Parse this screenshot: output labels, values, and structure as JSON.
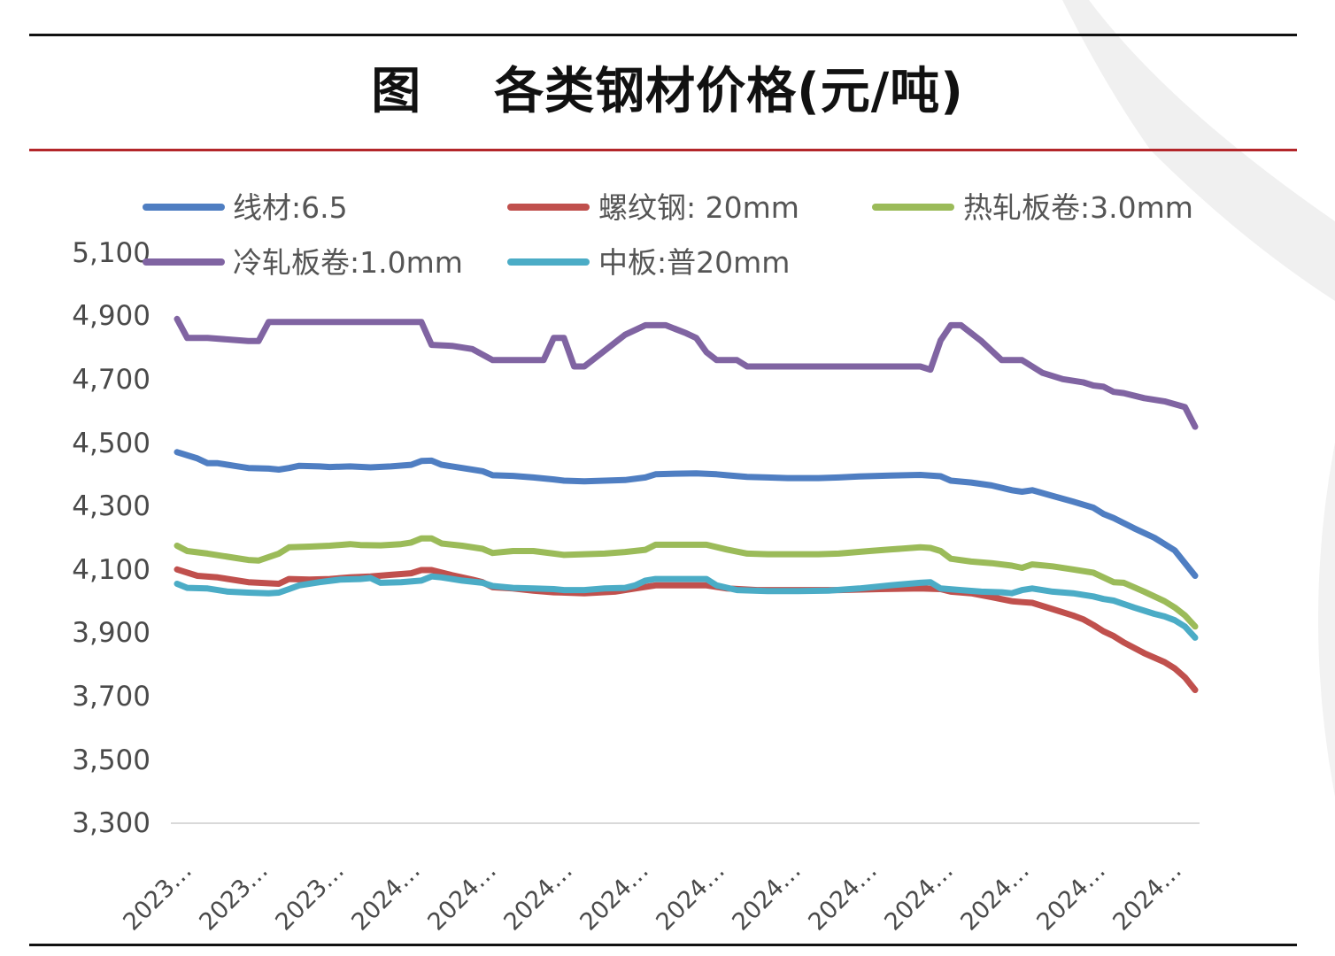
{
  "title": "图    各类钢材价格(元/吨)",
  "chart_data": {
    "type": "line",
    "title": "图 各类钢材价格(元/吨)",
    "xlabel": "",
    "ylabel": "",
    "ylim": [
      3300,
      5100
    ],
    "yticks": [
      "5,100",
      "4,900",
      "4,700",
      "4,500",
      "4,300",
      "4,100",
      "3,900",
      "3,700",
      "3,500",
      "3,300"
    ],
    "ytick_values": [
      5100,
      4900,
      4700,
      4500,
      4300,
      4100,
      3900,
      3700,
      3500,
      3300
    ],
    "x_tick_labels": [
      "2023…",
      "2023…",
      "2023…",
      "2024…",
      "2024…",
      "2024…",
      "2024…",
      "2024…",
      "2024…",
      "2024…",
      "2024…",
      "2024…",
      "2024…",
      "2024…"
    ],
    "x_range": [
      0,
      100
    ],
    "grid": false,
    "legend_position": "top",
    "series": [
      {
        "name": "线材:6.5",
        "color": "#4f7ec2",
        "points": [
          [
            0,
            4470
          ],
          [
            2,
            4450
          ],
          [
            3,
            4435
          ],
          [
            4,
            4435
          ],
          [
            6,
            4425
          ],
          [
            7,
            4420
          ],
          [
            9,
            4418
          ],
          [
            10,
            4415
          ],
          [
            11,
            4420
          ],
          [
            12,
            4427
          ],
          [
            14,
            4425
          ],
          [
            15,
            4423
          ],
          [
            17,
            4425
          ],
          [
            19,
            4422
          ],
          [
            21,
            4425
          ],
          [
            23,
            4430
          ],
          [
            24,
            4442
          ],
          [
            25,
            4443
          ],
          [
            26,
            4430
          ],
          [
            28,
            4420
          ],
          [
            30,
            4410
          ],
          [
            31,
            4397
          ],
          [
            33,
            4395
          ],
          [
            35,
            4390
          ],
          [
            37,
            4384
          ],
          [
            38,
            4380
          ],
          [
            40,
            4378
          ],
          [
            42,
            4380
          ],
          [
            44,
            4382
          ],
          [
            46,
            4390
          ],
          [
            47,
            4400
          ],
          [
            49,
            4402
          ],
          [
            51,
            4403
          ],
          [
            53,
            4400
          ],
          [
            54,
            4397
          ],
          [
            56,
            4392
          ],
          [
            58,
            4390
          ],
          [
            60,
            4388
          ],
          [
            63,
            4388
          ],
          [
            65,
            4390
          ],
          [
            67,
            4393
          ],
          [
            70,
            4396
          ],
          [
            73,
            4398
          ],
          [
            75,
            4394
          ],
          [
            76,
            4380
          ],
          [
            78,
            4374
          ],
          [
            80,
            4365
          ],
          [
            82,
            4350
          ],
          [
            83,
            4345
          ],
          [
            84,
            4350
          ],
          [
            86,
            4332
          ],
          [
            88,
            4314
          ],
          [
            90,
            4295
          ],
          [
            91,
            4275
          ],
          [
            92,
            4262
          ],
          [
            93,
            4246
          ],
          [
            94,
            4230
          ],
          [
            96,
            4200
          ],
          [
            98,
            4160
          ],
          [
            99,
            4120
          ],
          [
            100,
            4080
          ]
        ]
      },
      {
        "name": "螺纹钢: 20mm",
        "color": "#c0504d",
        "points": [
          [
            0,
            4100
          ],
          [
            2,
            4080
          ],
          [
            4,
            4075
          ],
          [
            7,
            4060
          ],
          [
            10,
            4055
          ],
          [
            11,
            4070
          ],
          [
            13,
            4068
          ],
          [
            15,
            4070
          ],
          [
            17,
            4075
          ],
          [
            19,
            4078
          ],
          [
            21,
            4083
          ],
          [
            23,
            4088
          ],
          [
            24,
            4098
          ],
          [
            25,
            4098
          ],
          [
            27,
            4082
          ],
          [
            29,
            4068
          ],
          [
            30,
            4060
          ],
          [
            31,
            4044
          ],
          [
            33,
            4040
          ],
          [
            35,
            4033
          ],
          [
            37,
            4028
          ],
          [
            40,
            4025
          ],
          [
            43,
            4030
          ],
          [
            45,
            4040
          ],
          [
            47,
            4050
          ],
          [
            49,
            4050
          ],
          [
            52,
            4050
          ],
          [
            54,
            4040
          ],
          [
            57,
            4035
          ],
          [
            61,
            4035
          ],
          [
            65,
            4035
          ],
          [
            69,
            4038
          ],
          [
            73,
            4040
          ],
          [
            75,
            4038
          ],
          [
            76,
            4030
          ],
          [
            78,
            4025
          ],
          [
            80,
            4013
          ],
          [
            82,
            4000
          ],
          [
            83,
            3997
          ],
          [
            84,
            3995
          ],
          [
            86,
            3975
          ],
          [
            88,
            3955
          ],
          [
            89,
            3943
          ],
          [
            90,
            3925
          ],
          [
            91,
            3905
          ],
          [
            92,
            3890
          ],
          [
            93,
            3870
          ],
          [
            95,
            3836
          ],
          [
            97,
            3808
          ],
          [
            98,
            3788
          ],
          [
            99,
            3760
          ],
          [
            100,
            3720
          ]
        ]
      },
      {
        "name": "热轧板卷:3.0mm",
        "color": "#9bbb59",
        "points": [
          [
            0,
            4175
          ],
          [
            1,
            4158
          ],
          [
            3,
            4150
          ],
          [
            5,
            4140
          ],
          [
            7,
            4130
          ],
          [
            8,
            4128
          ],
          [
            10,
            4150
          ],
          [
            11,
            4170
          ],
          [
            13,
            4172
          ],
          [
            15,
            4175
          ],
          [
            17,
            4180
          ],
          [
            18,
            4177
          ],
          [
            20,
            4176
          ],
          [
            22,
            4180
          ],
          [
            23,
            4185
          ],
          [
            24,
            4198
          ],
          [
            25,
            4198
          ],
          [
            26,
            4182
          ],
          [
            28,
            4175
          ],
          [
            30,
            4165
          ],
          [
            31,
            4152
          ],
          [
            33,
            4158
          ],
          [
            35,
            4158
          ],
          [
            37,
            4150
          ],
          [
            38,
            4146
          ],
          [
            40,
            4148
          ],
          [
            42,
            4150
          ],
          [
            44,
            4155
          ],
          [
            46,
            4162
          ],
          [
            47,
            4178
          ],
          [
            49,
            4178
          ],
          [
            51,
            4178
          ],
          [
            52,
            4178
          ],
          [
            54,
            4163
          ],
          [
            56,
            4150
          ],
          [
            58,
            4148
          ],
          [
            60,
            4148
          ],
          [
            63,
            4148
          ],
          [
            65,
            4150
          ],
          [
            68,
            4158
          ],
          [
            70,
            4163
          ],
          [
            73,
            4170
          ],
          [
            74,
            4168
          ],
          [
            75,
            4158
          ],
          [
            76,
            4134
          ],
          [
            78,
            4125
          ],
          [
            80,
            4120
          ],
          [
            82,
            4112
          ],
          [
            83,
            4105
          ],
          [
            84,
            4116
          ],
          [
            86,
            4110
          ],
          [
            88,
            4100
          ],
          [
            90,
            4090
          ],
          [
            91,
            4075
          ],
          [
            92,
            4060
          ],
          [
            93,
            4058
          ],
          [
            95,
            4030
          ],
          [
            97,
            4000
          ],
          [
            98,
            3980
          ],
          [
            99,
            3955
          ],
          [
            100,
            3920
          ]
        ]
      },
      {
        "name": "冷轧板卷:1.0mm",
        "color": "#8064a2",
        "points": [
          [
            0,
            4890
          ],
          [
            1,
            4830
          ],
          [
            3,
            4830
          ],
          [
            5,
            4825
          ],
          [
            7,
            4820
          ],
          [
            8,
            4820
          ],
          [
            9,
            4880
          ],
          [
            10,
            4880
          ],
          [
            12,
            4880
          ],
          [
            15,
            4880
          ],
          [
            18,
            4880
          ],
          [
            21,
            4880
          ],
          [
            23,
            4880
          ],
          [
            24,
            4880
          ],
          [
            25,
            4808
          ],
          [
            27,
            4805
          ],
          [
            29,
            4795
          ],
          [
            31,
            4760
          ],
          [
            33,
            4760
          ],
          [
            35,
            4760
          ],
          [
            36,
            4760
          ],
          [
            37,
            4830
          ],
          [
            38,
            4830
          ],
          [
            39,
            4740
          ],
          [
            40,
            4740
          ],
          [
            42,
            4790
          ],
          [
            44,
            4840
          ],
          [
            46,
            4870
          ],
          [
            48,
            4870
          ],
          [
            50,
            4845
          ],
          [
            51,
            4830
          ],
          [
            52,
            4785
          ],
          [
            53,
            4760
          ],
          [
            55,
            4760
          ],
          [
            56,
            4740
          ],
          [
            58,
            4740
          ],
          [
            61,
            4740
          ],
          [
            65,
            4740
          ],
          [
            69,
            4740
          ],
          [
            73,
            4740
          ],
          [
            74,
            4730
          ],
          [
            75,
            4822
          ],
          [
            76,
            4870
          ],
          [
            77,
            4870
          ],
          [
            79,
            4820
          ],
          [
            81,
            4760
          ],
          [
            82,
            4760
          ],
          [
            83,
            4760
          ],
          [
            85,
            4720
          ],
          [
            87,
            4700
          ],
          [
            89,
            4690
          ],
          [
            90,
            4680
          ],
          [
            91,
            4676
          ],
          [
            92,
            4660
          ],
          [
            93,
            4656
          ],
          [
            95,
            4640
          ],
          [
            97,
            4630
          ],
          [
            99,
            4612
          ],
          [
            100,
            4550
          ]
        ]
      },
      {
        "name": "中板:普20mm",
        "color": "#4bacc6",
        "points": [
          [
            0,
            4055
          ],
          [
            1,
            4042
          ],
          [
            3,
            4040
          ],
          [
            5,
            4030
          ],
          [
            7,
            4027
          ],
          [
            9,
            4025
          ],
          [
            10,
            4027
          ],
          [
            11,
            4038
          ],
          [
            12,
            4050
          ],
          [
            14,
            4060
          ],
          [
            16,
            4068
          ],
          [
            18,
            4070
          ],
          [
            19,
            4073
          ],
          [
            20,
            4058
          ],
          [
            22,
            4060
          ],
          [
            24,
            4065
          ],
          [
            25,
            4078
          ],
          [
            26,
            4075
          ],
          [
            28,
            4065
          ],
          [
            30,
            4058
          ],
          [
            31,
            4048
          ],
          [
            33,
            4042
          ],
          [
            35,
            4040
          ],
          [
            37,
            4038
          ],
          [
            38,
            4035
          ],
          [
            40,
            4035
          ],
          [
            42,
            4040
          ],
          [
            44,
            4042
          ],
          [
            45,
            4050
          ],
          [
            46,
            4065
          ],
          [
            47,
            4070
          ],
          [
            49,
            4070
          ],
          [
            51,
            4070
          ],
          [
            52,
            4070
          ],
          [
            53,
            4050
          ],
          [
            55,
            4035
          ],
          [
            58,
            4032
          ],
          [
            61,
            4032
          ],
          [
            64,
            4033
          ],
          [
            67,
            4040
          ],
          [
            70,
            4050
          ],
          [
            73,
            4058
          ],
          [
            74,
            4060
          ],
          [
            75,
            4040
          ],
          [
            77,
            4035
          ],
          [
            79,
            4030
          ],
          [
            81,
            4028
          ],
          [
            82,
            4025
          ],
          [
            83,
            4035
          ],
          [
            84,
            4040
          ],
          [
            86,
            4030
          ],
          [
            88,
            4025
          ],
          [
            90,
            4015
          ],
          [
            91,
            4007
          ],
          [
            92,
            4002
          ],
          [
            94,
            3980
          ],
          [
            96,
            3960
          ],
          [
            97,
            3952
          ],
          [
            98,
            3940
          ],
          [
            99,
            3920
          ],
          [
            100,
            3885
          ]
        ]
      }
    ]
  }
}
